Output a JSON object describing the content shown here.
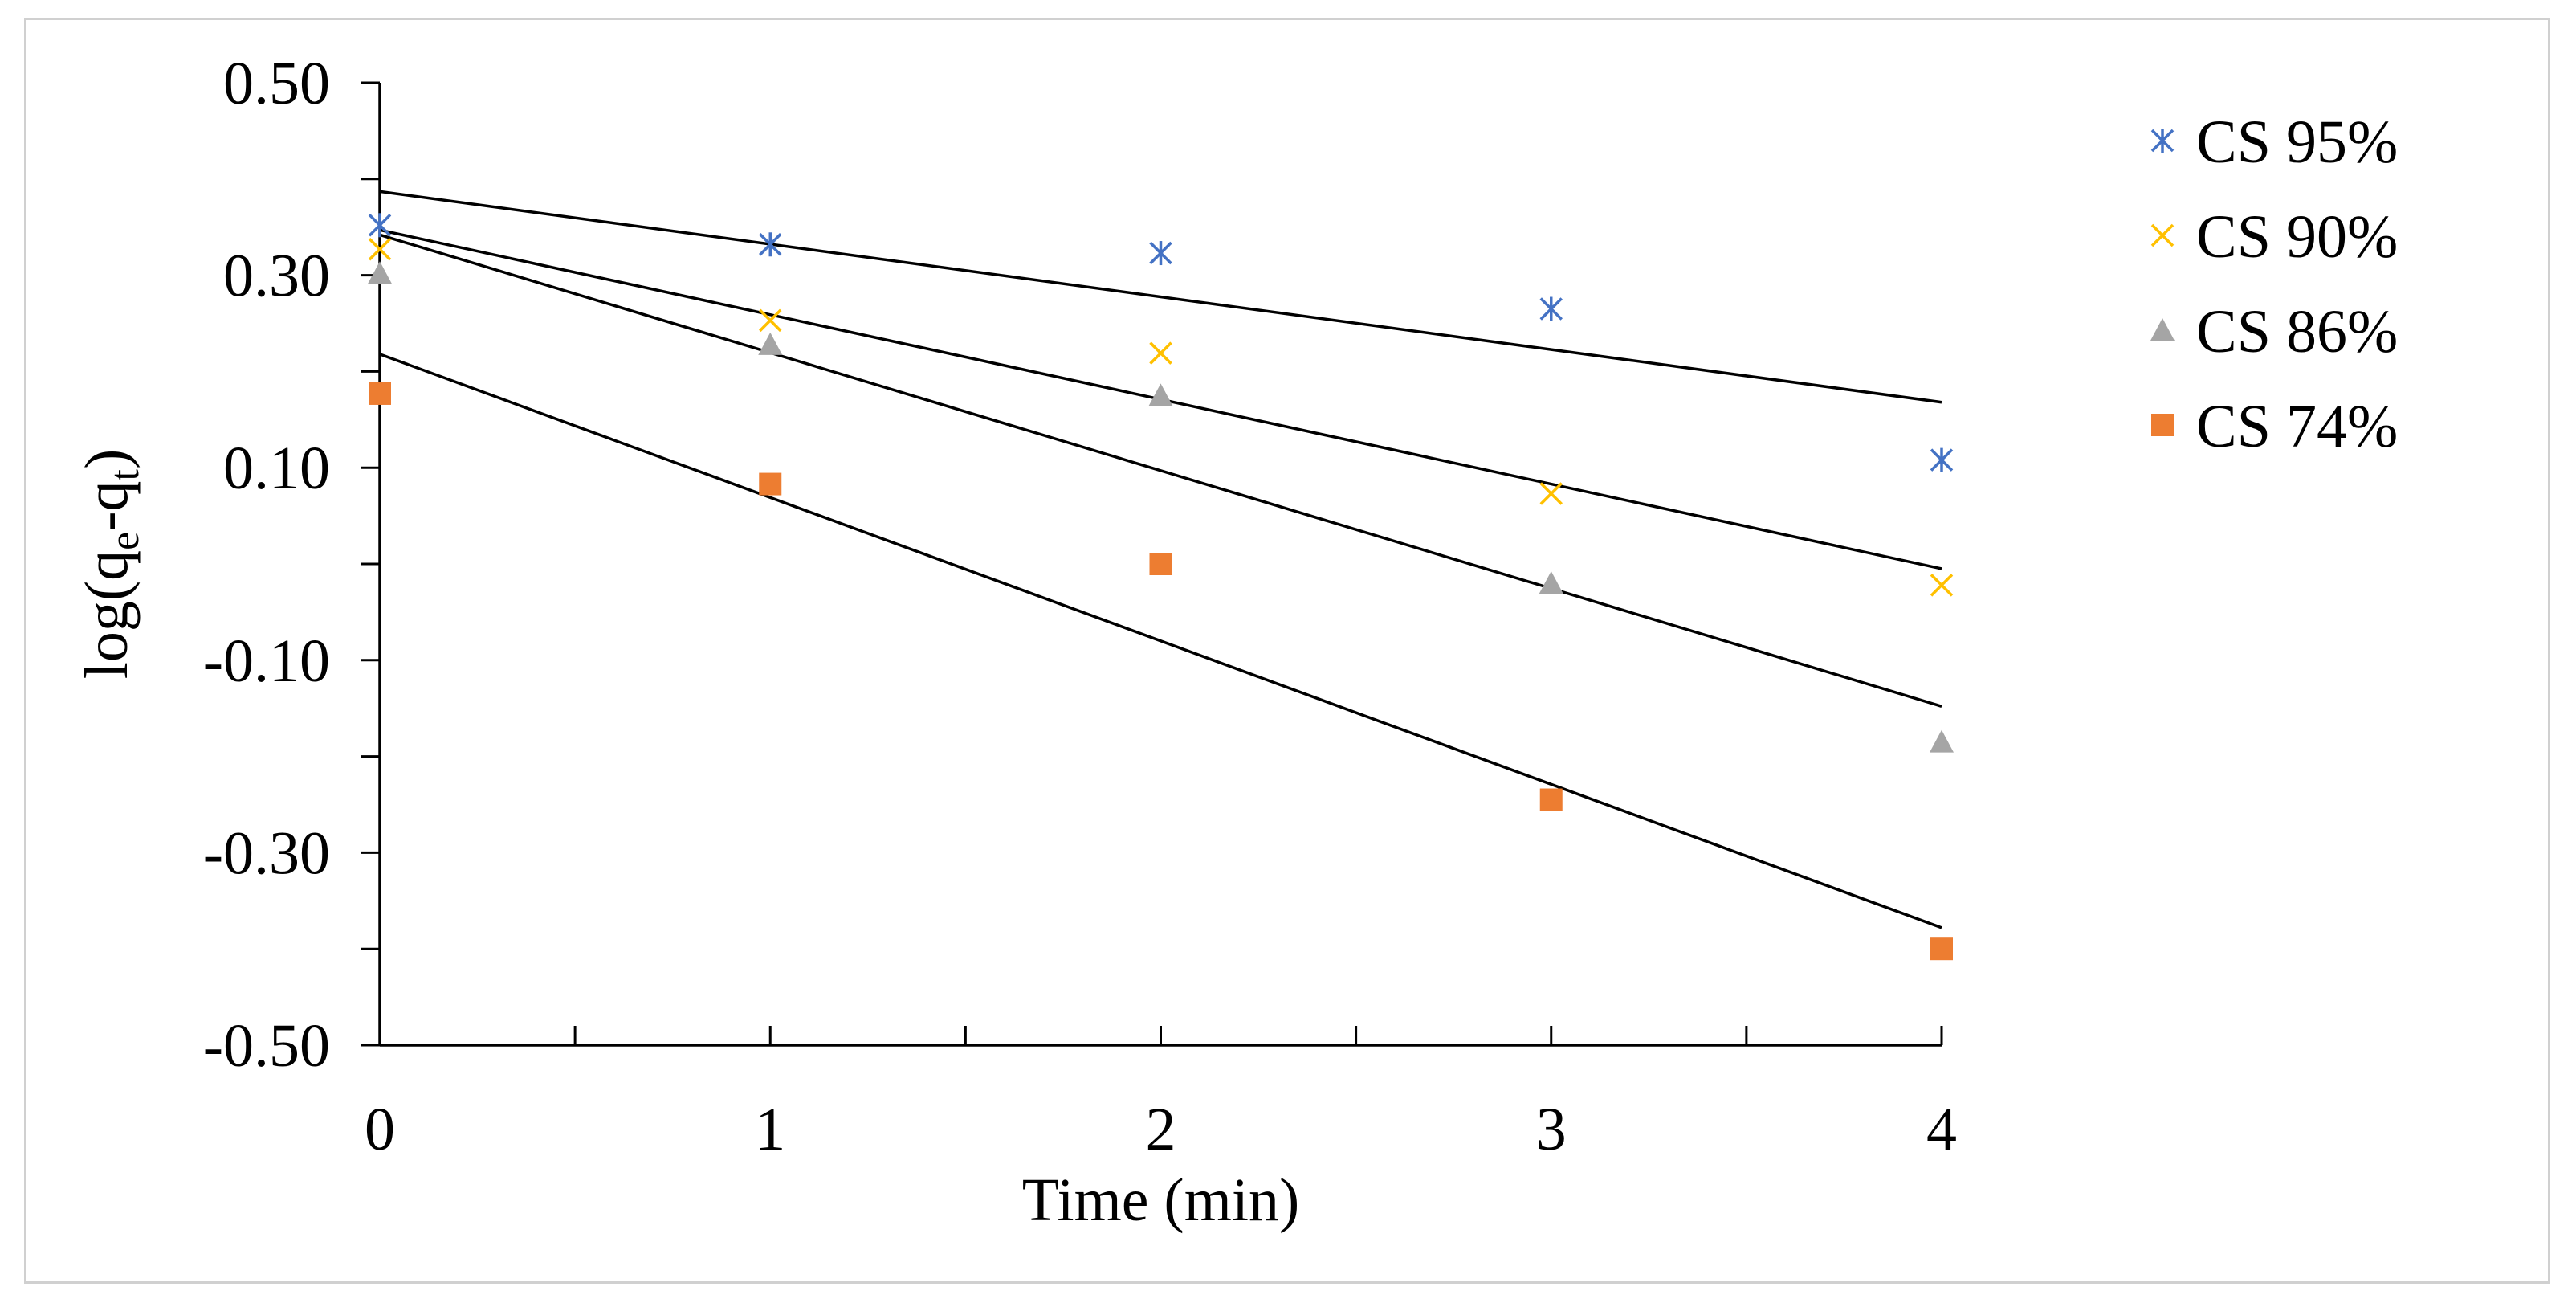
{
  "chart_data": {
    "type": "scatter",
    "title": "",
    "xlabel": "Time (min)",
    "ylabel_parts": {
      "base": "log(q",
      "sub1": "e",
      "mid": "-q",
      "sub2": "t",
      "end": ")"
    },
    "xlim": [
      0,
      4
    ],
    "ylim": [
      -0.5,
      0.5
    ],
    "x_ticks": [
      0,
      1,
      2,
      3,
      4
    ],
    "x_tick_labels": [
      "0",
      "1",
      "2",
      "3",
      "4"
    ],
    "y_ticks": [
      0.5,
      0.3,
      0.1,
      -0.1,
      -0.3,
      -0.5
    ],
    "y_tick_labels": [
      "0.50",
      "0.30",
      "0.10",
      "-0.10",
      "-0.30",
      "-0.50"
    ],
    "legend_position": "right",
    "series": [
      {
        "name": "CS 95%",
        "marker": "asterisk",
        "color": "#4472C4",
        "x": [
          0,
          1,
          2,
          3,
          4
        ],
        "y": [
          0.352,
          0.332,
          0.323,
          0.265,
          0.108
        ],
        "trendline": {
          "x0": 0,
          "y0": 0.387,
          "x1": 4,
          "y1": 0.168
        }
      },
      {
        "name": "CS 90%",
        "marker": "x",
        "color": "#FFC000",
        "x": [
          0,
          1,
          2,
          3,
          4
        ],
        "y": [
          0.327,
          0.253,
          0.219,
          0.073,
          -0.022
        ],
        "trendline": {
          "x0": 0,
          "y0": 0.347,
          "x1": 4,
          "y1": -0.005
        }
      },
      {
        "name": "CS 86%",
        "marker": "triangle",
        "color": "#A5A5A5",
        "x": [
          0,
          1,
          2,
          3,
          4
        ],
        "y": [
          0.302,
          0.228,
          0.175,
          -0.02,
          -0.185
        ],
        "trendline": {
          "x0": 0,
          "y0": 0.342,
          "x1": 4,
          "y1": -0.148
        }
      },
      {
        "name": "CS 74%",
        "marker": "square",
        "color": "#ED7D31",
        "x": [
          0,
          1,
          2,
          3,
          4
        ],
        "y": [
          0.177,
          0.083,
          0.0,
          -0.245,
          -0.4
        ],
        "trendline": {
          "x0": 0,
          "y0": 0.218,
          "x1": 4,
          "y1": -0.378
        }
      }
    ]
  }
}
